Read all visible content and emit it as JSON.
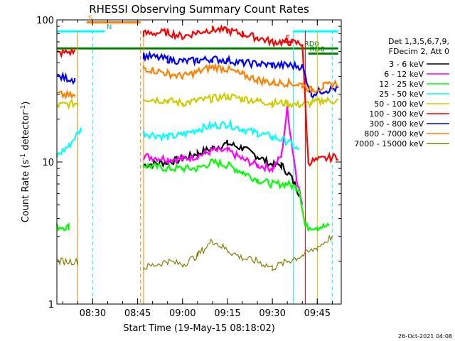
{
  "chart_data": {
    "type": "line",
    "title": "RHESSI Observing Summary Count Rates",
    "xlabel": "Start Time (19-May-15 08:18:02)",
    "ylabel": "Count Rate (s-1 detector-1)",
    "ylabel_parts": [
      "Count Rate (s",
      "-1",
      " detector",
      "-1",
      ")"
    ],
    "yscale": "log",
    "ylim": [
      1,
      100
    ],
    "xlim": [
      "08:18:02",
      "09:53:00"
    ],
    "x_ticks": [
      "08:30",
      "08:45",
      "09:00",
      "09:15",
      "09:30",
      "09:45"
    ],
    "y_ticks": [
      "1",
      "10",
      "100"
    ],
    "timestamp": "26-Oct-2021 04:08",
    "legend": {
      "header": [
        "Det 1,3,5,6,7,9,",
        "FDecim 2, Att 0"
      ],
      "placement": "right",
      "entries": [
        {
          "label": "3 - 6 keV",
          "color": "#000000"
        },
        {
          "label": "6 - 12 keV",
          "color": "#ff00ff"
        },
        {
          "label": "12 - 25 keV",
          "color": "#00ff00"
        },
        {
          "label": "25 - 50 keV",
          "color": "#00ffff"
        },
        {
          "label": "50 - 100 keV",
          "color": "#cccc00"
        },
        {
          "label": "100 - 300 keV",
          "color": "#ff0000"
        },
        {
          "label": "300 - 800 keV",
          "color": "#0000ff"
        },
        {
          "label": "800 - 7000 keV",
          "color": "#ff8000"
        },
        {
          "label": "7000 - 15000 keV",
          "color": "#808000"
        }
      ]
    },
    "flags": [
      {
        "label": "S",
        "color": "#ff8000",
        "start": "08:28",
        "end": "08:46",
        "level": 96
      },
      {
        "label": "N",
        "color": "#00ffff",
        "start": "08:18",
        "end": "08:34",
        "level": 83
      },
      {
        "label": "F",
        "color": "#ff0000",
        "start": "09:34",
        "end": "09:37",
        "level": 70
      },
      {
        "label": "RD0",
        "color": "#00ffff",
        "start": "09:37",
        "end": "09:52",
        "level": 83
      },
      {
        "label": "RD0",
        "color": "#008000",
        "start": "08:18",
        "end": "09:52",
        "level": 63
      },
      {
        "label": "RD6",
        "color": "#008000",
        "start": "09:42",
        "end": "09:52",
        "level": 58
      }
    ],
    "series": [
      {
        "name": "3 - 6 keV",
        "color": "#000000",
        "x": [
          "08:47",
          "08:55",
          "09:00",
          "09:05",
          "09:10",
          "09:15",
          "09:20",
          "09:25",
          "09:30",
          "09:33",
          "09:36",
          "09:39"
        ],
        "values": [
          9.5,
          10,
          10.5,
          11.5,
          12.5,
          13.5,
          12.5,
          11,
          9.5,
          9.5,
          8,
          6
        ]
      },
      {
        "name": "6 - 12 keV",
        "color": "#ff00ff",
        "x": [
          "08:47",
          "08:55",
          "09:00",
          "09:05",
          "09:10",
          "09:15",
          "09:20",
          "09:25",
          "09:30",
          "09:33",
          "09:35",
          "09:36",
          "09:38",
          "09:40"
        ],
        "values": [
          11,
          10.5,
          10.5,
          11,
          12,
          12,
          10.5,
          9.5,
          9,
          11,
          24,
          16,
          8,
          5
        ]
      },
      {
        "name": "12 - 25 keV",
        "color": "#00ff00",
        "x": [
          "08:18",
          "08:22",
          "08:47",
          "08:55",
          "09:00",
          "09:05",
          "09:10",
          "09:15",
          "09:20",
          "09:25",
          "09:30",
          "09:35",
          "09:39",
          "09:41",
          "09:45",
          "09:49"
        ],
        "values": [
          3.5,
          3.5,
          9.5,
          9,
          9,
          9,
          10,
          9.5,
          8.5,
          7.5,
          7,
          7,
          6.5,
          3.5,
          3.5,
          3.5
        ]
      },
      {
        "name": "25 - 50 keV",
        "color": "#00ffff",
        "x": [
          "08:18",
          "08:22",
          "08:26",
          "08:47",
          "08:55",
          "09:00",
          "09:05",
          "09:10",
          "09:15",
          "09:20",
          "09:25",
          "09:30",
          "09:35",
          "09:39"
        ],
        "values": [
          11,
          13,
          17,
          16,
          15,
          15.5,
          17,
          18,
          18.5,
          17,
          16,
          15,
          14,
          12
        ]
      },
      {
        "name": "50 - 100 keV",
        "color": "#cccc00",
        "x": [
          "08:18",
          "08:25",
          "08:47",
          "08:55",
          "09:00",
          "09:05",
          "09:10",
          "09:15",
          "09:20",
          "09:25",
          "09:30",
          "09:35",
          "09:39",
          "09:43",
          "09:47",
          "09:52"
        ],
        "values": [
          25,
          26,
          28,
          27,
          26,
          27,
          28,
          29,
          28,
          27,
          26,
          26,
          25,
          26,
          27,
          27
        ]
      },
      {
        "name": "100 - 300 keV",
        "color": "#ff0000",
        "x": [
          "08:18",
          "08:24",
          "08:47",
          "08:55",
          "09:00",
          "09:05",
          "09:10",
          "09:15",
          "09:20",
          "09:25",
          "09:30",
          "09:35",
          "09:40",
          "09:42",
          "09:52"
        ],
        "values": [
          58,
          60,
          80,
          82,
          76,
          82,
          86,
          84,
          80,
          75,
          70,
          70,
          68,
          10,
          11
        ]
      },
      {
        "name": "300 - 800 keV",
        "color": "#0000ff",
        "x": [
          "08:18",
          "08:24",
          "08:47",
          "08:55",
          "09:00",
          "09:05",
          "09:10",
          "09:15",
          "09:20",
          "09:25",
          "09:30",
          "09:35",
          "09:40",
          "09:43",
          "09:47",
          "09:52"
        ],
        "values": [
          40,
          38,
          56,
          53,
          51,
          52,
          53,
          52,
          50,
          49,
          48,
          48,
          47,
          30,
          32,
          33
        ]
      },
      {
        "name": "800 - 7000 keV",
        "color": "#ff8000",
        "x": [
          "08:18",
          "08:24",
          "08:47",
          "08:55",
          "09:00",
          "09:05",
          "09:10",
          "09:15",
          "09:20",
          "09:25",
          "09:30",
          "09:35",
          "09:40",
          "09:43",
          "09:47",
          "09:52"
        ],
        "values": [
          30,
          29,
          46,
          42,
          40,
          43,
          47,
          45,
          41,
          38,
          36,
          36,
          35,
          32,
          34,
          36
        ]
      },
      {
        "name": "7000 - 15000 keV",
        "color": "#808000",
        "x": [
          "08:18",
          "08:25",
          "08:47",
          "08:55",
          "09:00",
          "09:05",
          "09:10",
          "09:15",
          "09:20",
          "09:25",
          "09:30",
          "09:35",
          "09:40",
          "09:45",
          "09:50"
        ],
        "values": [
          2,
          2,
          1.8,
          2,
          1.9,
          2.2,
          2.8,
          2.4,
          2.1,
          2,
          1.8,
          2,
          2.2,
          2.5,
          3
        ]
      }
    ]
  }
}
